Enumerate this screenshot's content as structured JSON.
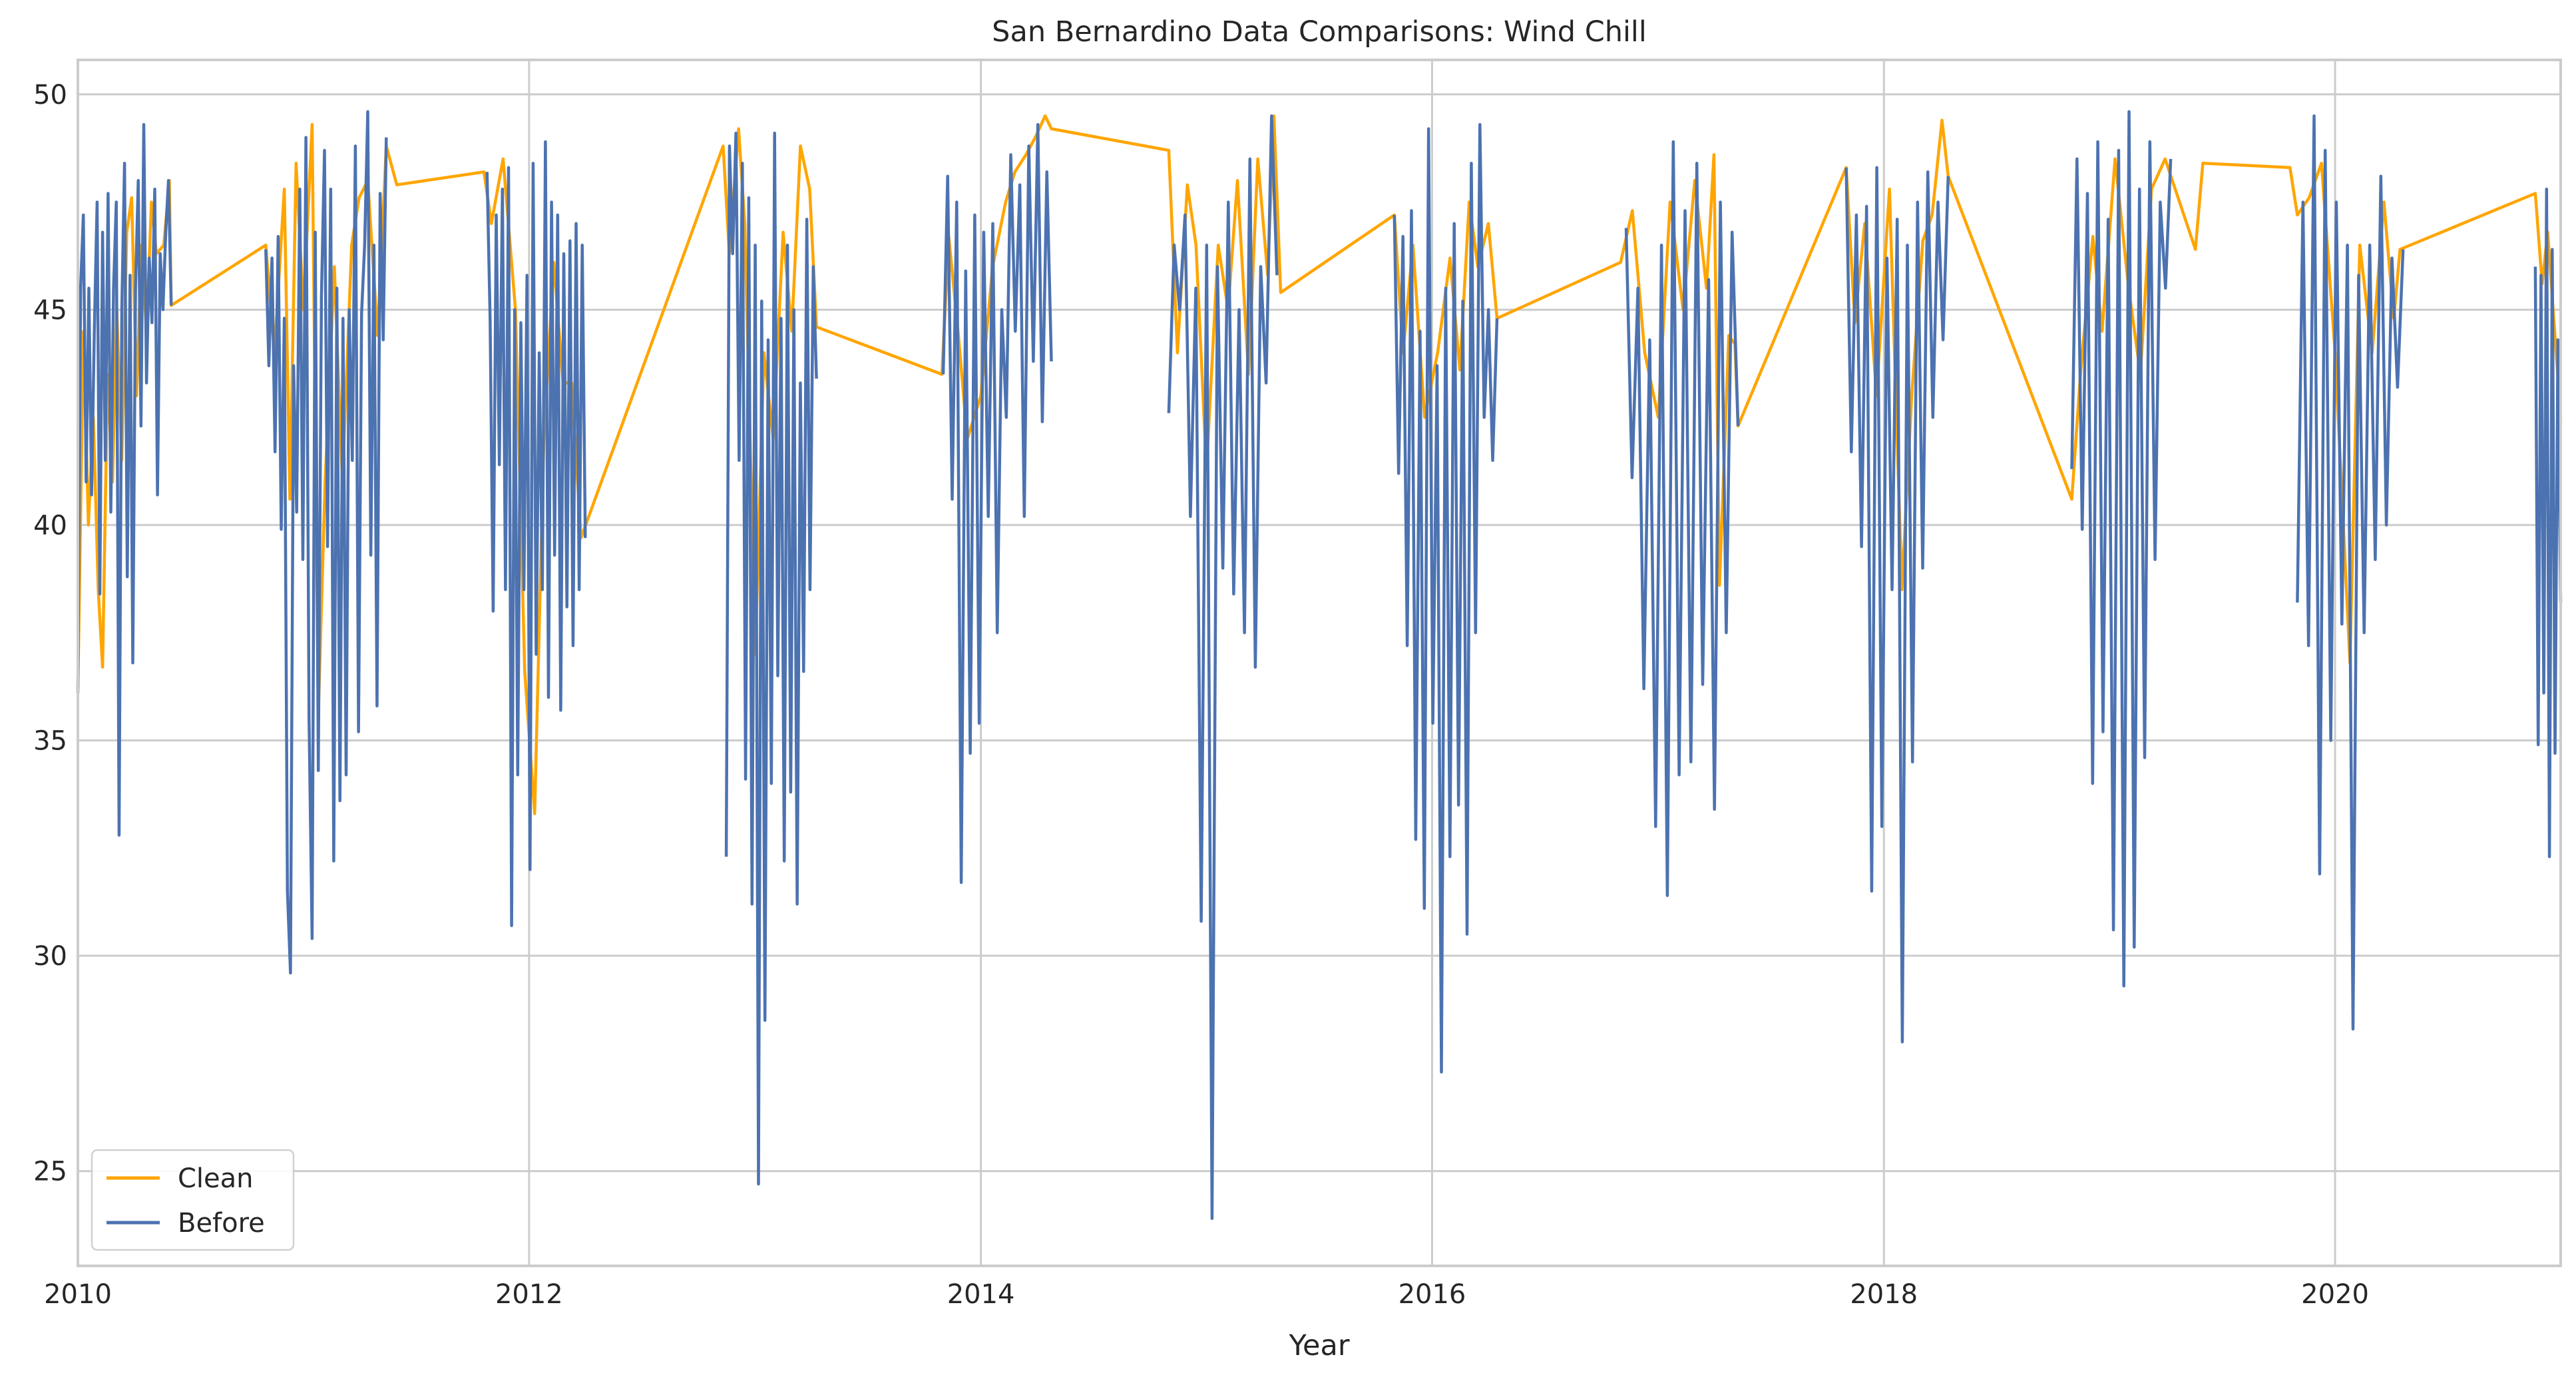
{
  "chart_data": {
    "type": "line",
    "title": "San Bernardino Data Comparisons: Wind Chill",
    "xlabel": "Year",
    "ylabel": "",
    "xlim": [
      "2010-01-01",
      "2020-12-31"
    ],
    "ylim": [
      22.8,
      50.8
    ],
    "x_ticks": [
      "2010",
      "2012",
      "2014",
      "2016",
      "2018",
      "2020"
    ],
    "y_ticks": [
      25,
      30,
      35,
      40,
      45,
      50
    ],
    "grid": true,
    "legend": "bottom-left",
    "series": [
      {
        "name": "Clean",
        "color": "#ffa500",
        "points": [
          [
            "2010-01-01",
            36.2
          ],
          [
            "2010-01-10",
            44.5
          ],
          [
            "2010-01-18",
            40.0
          ],
          [
            "2010-01-26",
            42.5
          ],
          [
            "2010-02-03",
            38.5
          ],
          [
            "2010-02-10",
            36.7
          ],
          [
            "2010-02-18",
            43.5
          ],
          [
            "2010-02-26",
            41.0
          ],
          [
            "2010-03-05",
            45.0
          ],
          [
            "2010-03-13",
            41.5
          ],
          [
            "2010-03-21",
            46.8
          ],
          [
            "2010-03-29",
            47.6
          ],
          [
            "2010-04-06",
            43.0
          ],
          [
            "2010-04-14",
            46.5
          ],
          [
            "2010-04-22",
            44.5
          ],
          [
            "2010-04-30",
            47.5
          ],
          [
            "2010-05-08",
            46.3
          ],
          [
            "2010-05-20",
            46.5
          ],
          [
            "2010-05-29",
            48.0
          ],
          [
            "2010-06-01",
            45.1
          ],
          [
            "2010-11-01",
            46.5
          ],
          [
            "2010-11-15",
            44.0
          ],
          [
            "2010-12-01",
            47.8
          ],
          [
            "2010-12-10",
            40.6
          ],
          [
            "2010-12-20",
            48.4
          ],
          [
            "2011-01-01",
            45.0
          ],
          [
            "2011-01-15",
            49.3
          ],
          [
            "2011-01-25",
            35.6
          ],
          [
            "2011-02-05",
            41.0
          ],
          [
            "2011-02-20",
            46.0
          ],
          [
            "2011-03-05",
            41.0
          ],
          [
            "2011-03-20",
            46.5
          ],
          [
            "2011-04-01",
            47.6
          ],
          [
            "2011-04-15",
            48.0
          ],
          [
            "2011-05-01",
            44.4
          ],
          [
            "2011-05-15",
            48.8
          ],
          [
            "2011-06-01",
            47.9
          ],
          [
            "2011-10-20",
            48.2
          ],
          [
            "2011-11-01",
            47.0
          ],
          [
            "2011-11-20",
            48.5
          ],
          [
            "2011-12-10",
            45.0
          ],
          [
            "2011-12-25",
            36.6
          ],
          [
            "2012-01-10",
            33.3
          ],
          [
            "2012-01-25",
            42.0
          ],
          [
            "2012-02-10",
            46.1
          ],
          [
            "2012-02-25",
            43.3
          ],
          [
            "2012-03-10",
            43.3
          ],
          [
            "2012-03-25",
            39.7
          ],
          [
            "2012-11-10",
            48.8
          ],
          [
            "2012-11-20",
            46.3
          ],
          [
            "2012-12-05",
            49.2
          ],
          [
            "2012-12-15",
            47.0
          ],
          [
            "2013-01-01",
            37.0
          ],
          [
            "2013-01-15",
            44.0
          ],
          [
            "2013-01-30",
            42.0
          ],
          [
            "2013-02-15",
            46.8
          ],
          [
            "2013-03-01",
            44.5
          ],
          [
            "2013-03-15",
            48.8
          ],
          [
            "2013-03-30",
            47.8
          ],
          [
            "2013-04-10",
            44.6
          ],
          [
            "2013-10-30",
            43.5
          ],
          [
            "2013-11-10",
            46.7
          ],
          [
            "2013-11-25",
            44.5
          ],
          [
            "2013-12-10",
            42.0
          ],
          [
            "2014-01-01",
            43.0
          ],
          [
            "2014-01-20",
            46.0
          ],
          [
            "2014-02-10",
            47.5
          ],
          [
            "2014-02-25",
            48.2
          ],
          [
            "2014-03-15",
            48.6
          ],
          [
            "2014-03-30",
            49.0
          ],
          [
            "2014-04-15",
            49.5
          ],
          [
            "2014-04-25",
            49.2
          ],
          [
            "2014-11-01",
            48.7
          ],
          [
            "2014-11-15",
            44.0
          ],
          [
            "2014-12-01",
            47.9
          ],
          [
            "2014-12-15",
            46.5
          ],
          [
            "2015-01-01",
            41.3
          ],
          [
            "2015-01-20",
            46.5
          ],
          [
            "2015-02-05",
            45.0
          ],
          [
            "2015-02-20",
            48.0
          ],
          [
            "2015-03-10",
            43.5
          ],
          [
            "2015-03-25",
            48.5
          ],
          [
            "2015-04-10",
            45.8
          ],
          [
            "2015-04-20",
            49.5
          ],
          [
            "2015-05-01",
            45.4
          ],
          [
            "2015-11-01",
            47.2
          ],
          [
            "2015-11-15",
            44.0
          ],
          [
            "2015-12-01",
            46.5
          ],
          [
            "2015-12-20",
            42.5
          ],
          [
            "2016-01-10",
            44.0
          ],
          [
            "2016-01-30",
            46.2
          ],
          [
            "2016-02-15",
            43.6
          ],
          [
            "2016-03-01",
            47.5
          ],
          [
            "2016-03-15",
            46.0
          ],
          [
            "2016-04-01",
            47.0
          ],
          [
            "2016-04-15",
            44.8
          ],
          [
            "2016-11-01",
            46.1
          ],
          [
            "2016-11-20",
            47.3
          ],
          [
            "2016-12-10",
            44.0
          ],
          [
            "2017-01-01",
            42.5
          ],
          [
            "2017-01-20",
            47.5
          ],
          [
            "2017-02-10",
            45.0
          ],
          [
            "2017-03-01",
            48.0
          ],
          [
            "2017-03-20",
            45.5
          ],
          [
            "2017-04-01",
            48.6
          ],
          [
            "2017-04-10",
            38.6
          ],
          [
            "2017-04-25",
            44.4
          ],
          [
            "2017-05-05",
            44.2
          ],
          [
            "2017-05-10",
            42.3
          ],
          [
            "2017-11-01",
            48.3
          ],
          [
            "2017-11-15",
            44.7
          ],
          [
            "2017-12-01",
            47.0
          ],
          [
            "2017-12-20",
            43.0
          ],
          [
            "2018-01-10",
            47.8
          ],
          [
            "2018-01-30",
            38.5
          ],
          [
            "2018-02-15",
            43.0
          ],
          [
            "2018-03-05",
            46.6
          ],
          [
            "2018-03-20",
            47.2
          ],
          [
            "2018-04-05",
            49.4
          ],
          [
            "2018-04-15",
            48.1
          ],
          [
            "2018-11-01",
            40.6
          ],
          [
            "2018-11-15",
            43.5
          ],
          [
            "2018-12-05",
            46.7
          ],
          [
            "2018-12-20",
            44.5
          ],
          [
            "2019-01-10",
            48.5
          ],
          [
            "2019-02-01",
            45.5
          ],
          [
            "2019-02-20",
            43.5
          ],
          [
            "2019-03-10",
            47.8
          ],
          [
            "2019-04-01",
            48.5
          ],
          [
            "2019-05-20",
            46.4
          ],
          [
            "2019-06-01",
            48.4
          ],
          [
            "2019-10-20",
            48.3
          ],
          [
            "2019-11-01",
            47.2
          ],
          [
            "2019-11-20",
            47.6
          ],
          [
            "2019-12-10",
            48.4
          ],
          [
            "2020-01-01",
            44.0
          ],
          [
            "2020-01-25",
            36.8
          ],
          [
            "2020-02-10",
            46.5
          ],
          [
            "2020-03-01",
            44.0
          ],
          [
            "2020-03-20",
            47.5
          ],
          [
            "2020-04-05",
            44.8
          ],
          [
            "2020-04-15",
            46.4
          ],
          [
            "2020-11-20",
            47.7
          ],
          [
            "2020-12-01",
            45.6
          ],
          [
            "2020-12-10",
            46.8
          ],
          [
            "2020-12-31",
            42.5
          ]
        ]
      },
      {
        "name": "Before",
        "color": "#4c72b0",
        "seasons": [
          {
            "start": "2010-01-01",
            "end": "2010-06-01",
            "values": [
              36.1,
              45.5,
              47.2,
              41.0,
              45.5,
              40.7,
              44.5,
              47.5,
              38.4,
              46.8,
              41.5,
              47.7,
              40.3,
              45.5,
              47.5,
              32.8,
              45.0,
              48.4,
              38.8,
              45.8,
              36.8,
              45.5,
              48.0,
              42.3,
              49.3,
              43.3,
              46.2,
              44.7,
              47.8,
              40.7,
              46.3,
              45.0,
              46.8,
              48.0,
              45.1
            ]
          },
          {
            "start": "2010-11-01",
            "end": "2011-05-15",
            "values": [
              46.4,
              43.7,
              46.2,
              41.7,
              46.7,
              39.9,
              44.8,
              31.5,
              29.6,
              43.7,
              40.3,
              47.8,
              39.2,
              49.0,
              35.5,
              30.4,
              46.8,
              34.3,
              45.3,
              48.7,
              39.5,
              47.8,
              32.2,
              45.5,
              33.6,
              44.8,
              34.2,
              45.0,
              41.5,
              48.8,
              35.2,
              44.9,
              46.5,
              49.6,
              39.3,
              46.5,
              35.8,
              47.7,
              44.3,
              49.0
            ]
          },
          {
            "start": "2011-10-25",
            "end": "2012-04-01",
            "values": [
              48.2,
              44.8,
              38.0,
              47.2,
              41.4,
              47.8,
              38.5,
              48.3,
              30.7,
              45.0,
              34.2,
              44.7,
              38.5,
              45.8,
              32.0,
              48.4,
              37.0,
              44.0,
              38.5,
              48.9,
              36.0,
              47.5,
              39.3,
              47.2,
              35.7,
              46.3,
              38.1,
              46.6,
              37.2,
              47.0,
              38.5,
              46.5,
              39.7
            ]
          },
          {
            "start": "2012-11-15",
            "end": "2013-04-10",
            "values": [
              32.3,
              48.8,
              46.3,
              49.1,
              41.5,
              48.4,
              34.1,
              47.6,
              31.2,
              46.5,
              24.7,
              45.2,
              28.5,
              44.3,
              34.0,
              49.1,
              36.5,
              44.8,
              32.2,
              46.5,
              33.8,
              45.0,
              31.2,
              43.3,
              36.6,
              47.1,
              38.5,
              46.0,
              43.4
            ]
          },
          {
            "start": "2013-11-01",
            "end": "2014-04-25",
            "values": [
              43.5,
              48.1,
              40.6,
              47.5,
              31.7,
              45.9,
              34.7,
              47.2,
              35.4,
              46.8,
              40.2,
              47.0,
              37.5,
              45.0,
              42.5,
              48.6,
              44.5,
              47.9,
              40.2,
              48.8,
              43.8,
              49.3,
              42.4,
              48.2,
              43.8
            ]
          },
          {
            "start": "2014-11-01",
            "end": "2015-04-25",
            "values": [
              42.6,
              46.5,
              45.0,
              47.2,
              40.2,
              45.5,
              30.8,
              46.5,
              23.9,
              46.0,
              39.0,
              47.5,
              38.4,
              45.0,
              37.5,
              48.5,
              36.7,
              46.0,
              43.3,
              49.5,
              45.8
            ]
          },
          {
            "start": "2015-11-01",
            "end": "2016-04-15",
            "values": [
              47.2,
              41.2,
              46.7,
              37.2,
              47.3,
              32.7,
              44.5,
              31.1,
              49.2,
              35.4,
              43.7,
              27.3,
              45.5,
              32.3,
              47.0,
              33.5,
              45.2,
              30.5,
              48.4,
              37.5,
              49.3,
              42.5,
              45.0,
              41.5,
              44.8
            ]
          },
          {
            "start": "2016-11-10",
            "end": "2017-05-10",
            "values": [
              46.9,
              41.1,
              45.5,
              36.2,
              44.3,
              33.0,
              46.5,
              31.4,
              48.9,
              34.2,
              47.3,
              34.5,
              48.4,
              36.3,
              45.7,
              33.4,
              47.5,
              37.5,
              46.8,
              42.3
            ]
          },
          {
            "start": "2017-11-01",
            "end": "2018-04-15",
            "values": [
              48.3,
              41.7,
              47.2,
              39.5,
              47.4,
              31.5,
              48.3,
              33.0,
              46.2,
              38.5,
              47.1,
              28.0,
              46.5,
              34.5,
              47.5,
              39.0,
              48.2,
              42.5,
              47.5,
              44.3,
              48.1
            ]
          },
          {
            "start": "2018-11-01",
            "end": "2019-04-10",
            "values": [
              41.3,
              48.5,
              39.9,
              47.7,
              34.0,
              48.9,
              35.2,
              47.1,
              30.6,
              48.7,
              29.3,
              49.6,
              30.2,
              47.8,
              34.6,
              48.9,
              39.2,
              47.5,
              45.5,
              48.5
            ]
          },
          {
            "start": "2019-11-01",
            "end": "2020-04-20",
            "values": [
              38.2,
              47.5,
              37.2,
              49.5,
              31.9,
              48.7,
              35.0,
              47.5,
              37.7,
              46.5,
              28.3,
              45.8,
              37.5,
              46.5,
              39.2,
              48.1,
              40.0,
              46.2,
              43.2,
              46.4
            ]
          },
          {
            "start": "2020-11-20",
            "end": "2020-12-31",
            "values": [
              46.0,
              34.9,
              45.8,
              36.1,
              47.8,
              32.3,
              46.4,
              34.7,
              44.3,
              38.2
            ]
          }
        ]
      }
    ]
  }
}
